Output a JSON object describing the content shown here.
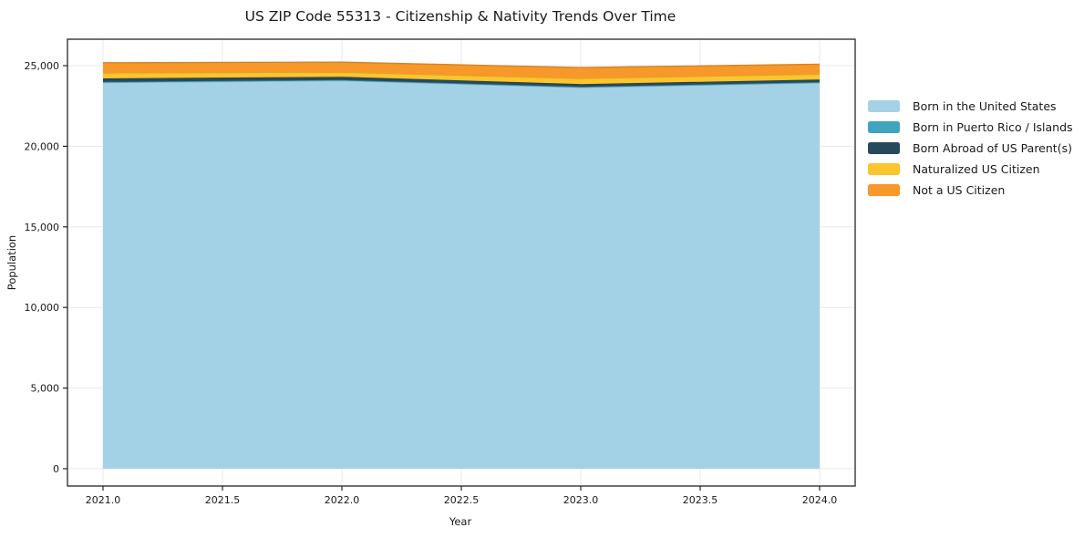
{
  "chart_data": {
    "type": "area",
    "stacked": true,
    "title": "US ZIP Code 55313 - Citizenship & Nativity Trends Over Time",
    "xlabel": "Year",
    "ylabel": "Population",
    "x": [
      2021,
      2022,
      2023,
      2024
    ],
    "series": [
      {
        "name": "Born in the United States",
        "color": "#a3d2e7",
        "values": [
          23950,
          24070,
          23640,
          23930
        ]
      },
      {
        "name": "Born in Puerto Rico / Islands",
        "color": "#41a4bf",
        "values": [
          45,
          40,
          50,
          45
        ]
      },
      {
        "name": "Born Abroad of US Parent(s)",
        "color": "#27495c",
        "values": [
          215,
          200,
          170,
          165
        ]
      },
      {
        "name": "Naturalized US Citizen",
        "color": "#fcc42d",
        "values": [
          340,
          285,
          340,
          340
        ]
      },
      {
        "name": "Not a US Citizen",
        "color": "#f7982a",
        "values": [
          630,
          620,
          680,
          610
        ]
      }
    ],
    "x_ticks": {
      "values": [
        2021.0,
        2021.5,
        2022.0,
        2022.5,
        2023.0,
        2023.5,
        2024.0
      ],
      "labels": [
        "2021.0",
        "2021.5",
        "2022.0",
        "2022.5",
        "2023.0",
        "2023.5",
        "2024.0"
      ]
    },
    "y_ticks": {
      "values": [
        0,
        5000,
        10000,
        15000,
        20000,
        25000
      ],
      "labels": [
        "0",
        "5,000",
        "10,000",
        "15,000",
        "20,000",
        "25,000"
      ]
    },
    "xlim": [
      2020.851,
      2024.149
    ],
    "ylim": [
      -1075,
      26640
    ],
    "grid": true,
    "legend_position": "right-outside",
    "colors": {
      "grid": "#e8e8e8",
      "spine": "#262626",
      "text": "#1a1a1a",
      "background": "#ffffff"
    }
  }
}
